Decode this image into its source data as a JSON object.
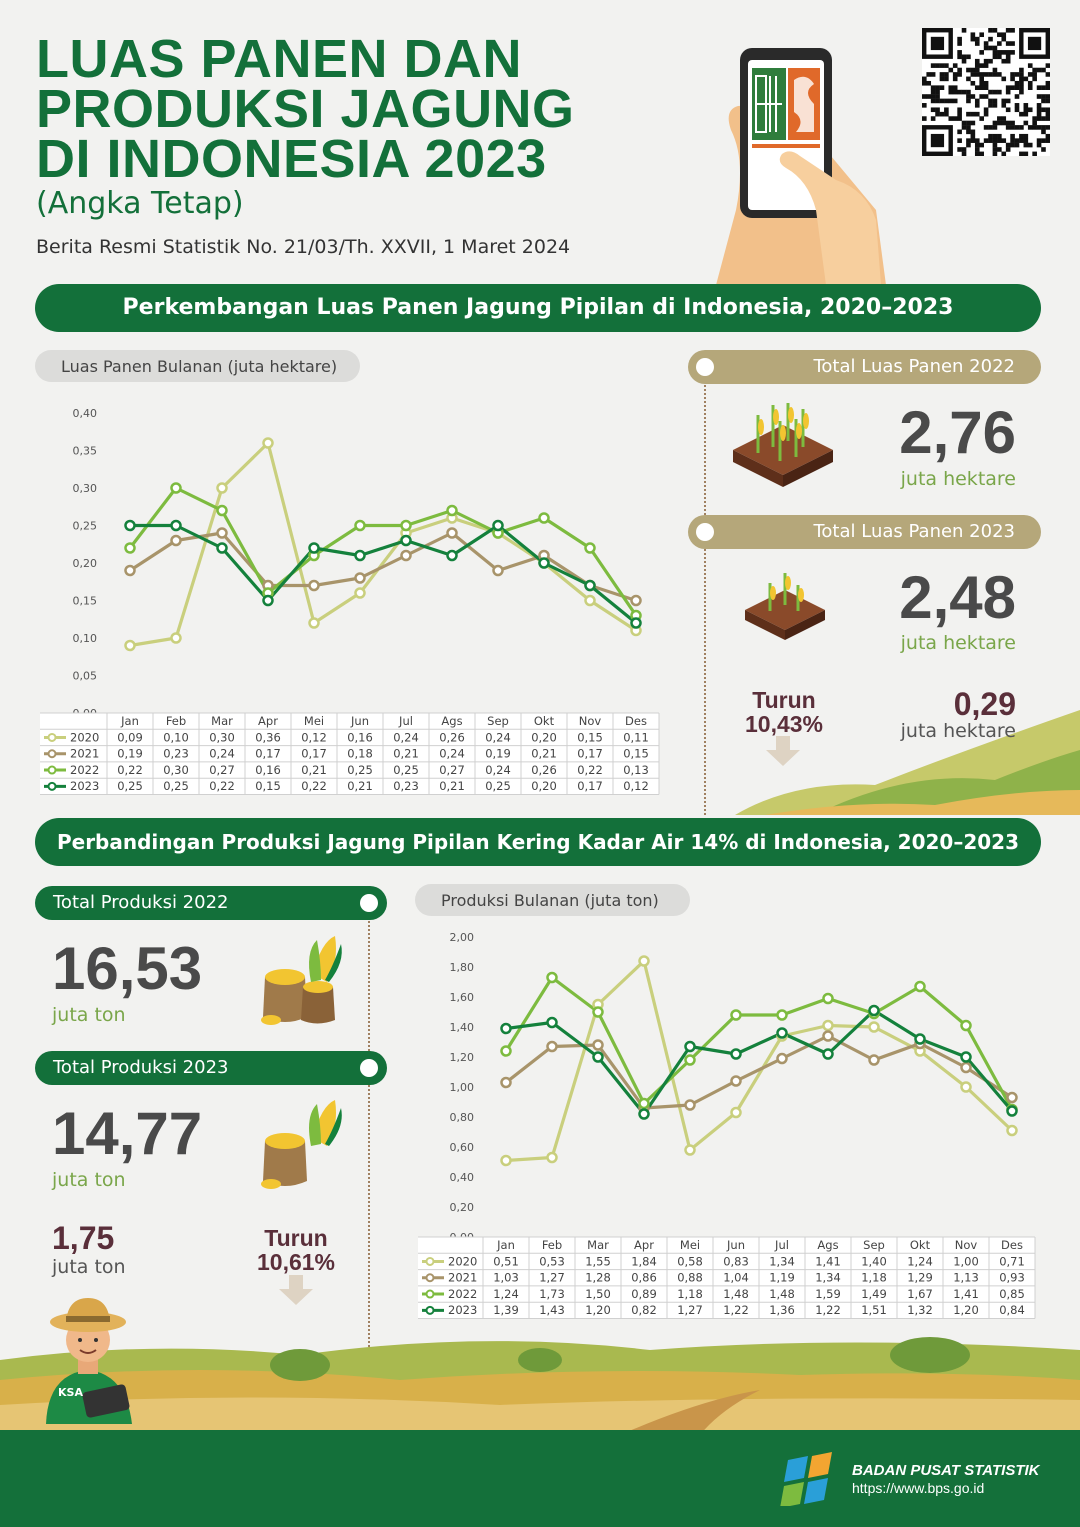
{
  "header": {
    "title_line1": "LUAS PANEN DAN",
    "title_line2": "PRODUKSI JAGUNG",
    "title_line3": "DI INDONESIA 2023",
    "subtitle": "(Angka Tetap)",
    "release": "Berita Resmi Statistik No. 21/03/Th. XXVII, 1 Maret 2024"
  },
  "section1": {
    "banner": "Perkembangan Luas Panen Jagung Pipilan di Indonesia, 2020–2023",
    "total_2022_label": "Total Luas Panen 2022",
    "total_2022_value": "2,76",
    "total_2022_unit": "juta hektare",
    "total_2023_label": "Total Luas Panen 2023",
    "total_2023_value": "2,48",
    "total_2023_unit": "juta hektare",
    "change_label": "Turun",
    "change_pct": "10,43%",
    "change_value": "0,29",
    "change_unit": "juta hektare"
  },
  "section2": {
    "banner": "Perbandingan Produksi Jagung Pipilan Kering Kadar Air 14% di Indonesia, 2020–2023",
    "total_2022_label": "Total Produksi 2022",
    "total_2022_value": "16,53",
    "total_2022_unit": "juta ton",
    "total_2023_label": "Total Produksi 2023",
    "total_2023_value": "14,77",
    "total_2023_unit": "juta ton",
    "change_value": "1,75",
    "change_unit": "juta ton",
    "change_label": "Turun",
    "change_pct": "10,61%"
  },
  "footer": {
    "org": "BADAN PUSAT STATISTIK",
    "url": "https://www.bps.go.id",
    "ksa_badge": "KSA"
  },
  "colors": {
    "primary_green": "#13703a",
    "s2020": "#c9cf7d",
    "s2021": "#a8946a",
    "s2022": "#7dbb3f",
    "s2023": "#14813c"
  },
  "chart_data": [
    {
      "type": "line",
      "title": "Luas Panen Bulanan (juta hektare)",
      "categories": [
        "Jan",
        "Feb",
        "Mar",
        "Apr",
        "Mei",
        "Jun",
        "Jul",
        "Ags",
        "Sep",
        "Okt",
        "Nov",
        "Des"
      ],
      "yticks": [
        "0,00",
        "0,05",
        "0,10",
        "0,15",
        "0,20",
        "0,25",
        "0,30",
        "0,35",
        "0,40"
      ],
      "ylim": [
        0,
        0.4
      ],
      "series": [
        {
          "name": "2020",
          "color": "#c9cf7d",
          "values": [
            0.09,
            0.1,
            0.3,
            0.36,
            0.12,
            0.16,
            0.24,
            0.26,
            0.24,
            0.2,
            0.15,
            0.11
          ],
          "labels": [
            "0,09",
            "0,10",
            "0,30",
            "0,36",
            "0,12",
            "0,16",
            "0,24",
            "0,26",
            "0,24",
            "0,20",
            "0,15",
            "0,11"
          ]
        },
        {
          "name": "2021",
          "color": "#a8946a",
          "values": [
            0.19,
            0.23,
            0.24,
            0.17,
            0.17,
            0.18,
            0.21,
            0.24,
            0.19,
            0.21,
            0.17,
            0.15
          ],
          "labels": [
            "0,19",
            "0,23",
            "0,24",
            "0,17",
            "0,17",
            "0,18",
            "0,21",
            "0,24",
            "0,19",
            "0,21",
            "0,17",
            "0,15"
          ]
        },
        {
          "name": "2022",
          "color": "#7dbb3f",
          "values": [
            0.22,
            0.3,
            0.27,
            0.16,
            0.21,
            0.25,
            0.25,
            0.27,
            0.24,
            0.26,
            0.22,
            0.13
          ],
          "labels": [
            "0,22",
            "0,30",
            "0,27",
            "0,16",
            "0,21",
            "0,25",
            "0,25",
            "0,27",
            "0,24",
            "0,26",
            "0,22",
            "0,13"
          ]
        },
        {
          "name": "2023",
          "color": "#14813c",
          "values": [
            0.25,
            0.25,
            0.22,
            0.15,
            0.22,
            0.21,
            0.23,
            0.21,
            0.25,
            0.2,
            0.17,
            0.12
          ],
          "labels": [
            "0,25",
            "0,25",
            "0,22",
            "0,15",
            "0,22",
            "0,21",
            "0,23",
            "0,21",
            "0,25",
            "0,20",
            "0,17",
            "0,12"
          ]
        }
      ]
    },
    {
      "type": "line",
      "title": "Produksi Bulanan (juta ton)",
      "categories": [
        "Jan",
        "Feb",
        "Mar",
        "Apr",
        "Mei",
        "Jun",
        "Jul",
        "Ags",
        "Sep",
        "Okt",
        "Nov",
        "Des"
      ],
      "yticks": [
        "0,00",
        "0,20",
        "0,40",
        "0,60",
        "0,80",
        "1,00",
        "1,20",
        "1,40",
        "1,60",
        "1,80",
        "2,00"
      ],
      "ylim": [
        0,
        2.0
      ],
      "series": [
        {
          "name": "2020",
          "color": "#c9cf7d",
          "values": [
            0.51,
            0.53,
            1.55,
            1.84,
            0.58,
            0.83,
            1.34,
            1.41,
            1.4,
            1.24,
            1.0,
            0.71
          ],
          "labels": [
            "0,51",
            "0,53",
            "1,55",
            "1,84",
            "0,58",
            "0,83",
            "1,34",
            "1,41",
            "1,40",
            "1,24",
            "1,00",
            "0,71"
          ]
        },
        {
          "name": "2021",
          "color": "#a8946a",
          "values": [
            1.03,
            1.27,
            1.28,
            0.86,
            0.88,
            1.04,
            1.19,
            1.34,
            1.18,
            1.29,
            1.13,
            0.93
          ],
          "labels": [
            "1,03",
            "1,27",
            "1,28",
            "0,86",
            "0,88",
            "1,04",
            "1,19",
            "1,34",
            "1,18",
            "1,29",
            "1,13",
            "0,93"
          ]
        },
        {
          "name": "2022",
          "color": "#7dbb3f",
          "values": [
            1.24,
            1.73,
            1.5,
            0.89,
            1.18,
            1.48,
            1.48,
            1.59,
            1.49,
            1.67,
            1.41,
            0.85
          ],
          "labels": [
            "1,24",
            "1,73",
            "1,50",
            "0,89",
            "1,18",
            "1,48",
            "1,48",
            "1,59",
            "1,49",
            "1,67",
            "1,41",
            "0,85"
          ]
        },
        {
          "name": "2023",
          "color": "#14813c",
          "values": [
            1.39,
            1.43,
            1.2,
            0.82,
            1.27,
            1.22,
            1.36,
            1.22,
            1.51,
            1.32,
            1.2,
            0.84
          ],
          "labels": [
            "1,39",
            "1,43",
            "1,20",
            "0,82",
            "1,27",
            "1,22",
            "1,36",
            "1,22",
            "1,51",
            "1,32",
            "1,20",
            "0,84"
          ]
        }
      ]
    }
  ]
}
